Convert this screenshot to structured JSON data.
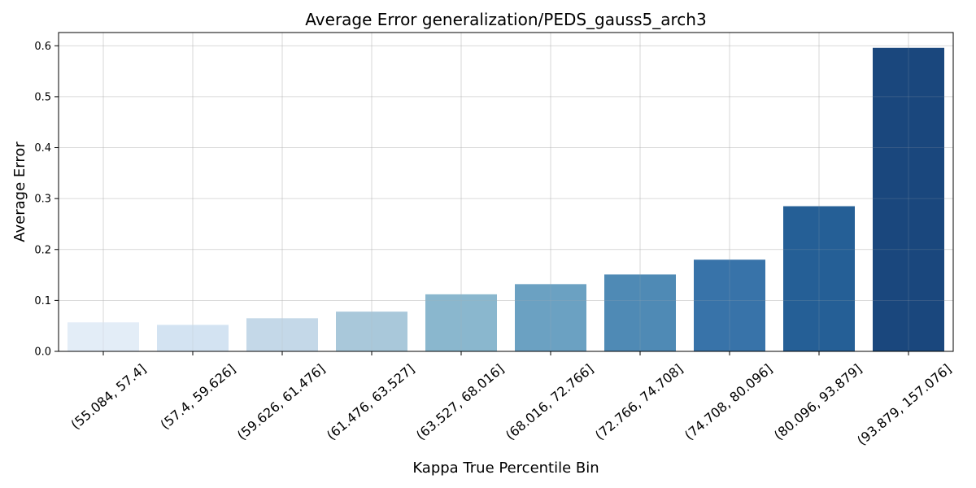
{
  "chart_data": {
    "type": "bar",
    "title": "Average Error generalization/PEDS_gauss5_arch3",
    "xlabel": "Kappa True Percentile Bin",
    "ylabel": "Average Error",
    "categories": [
      "(55.084, 57.4]",
      "(57.4, 59.626]",
      "(59.626, 61.476]",
      "(61.476, 63.527]",
      "(63.527, 68.016]",
      "(68.016, 72.766]",
      "(72.766, 74.708]",
      "(74.708, 80.096]",
      "(80.096, 93.879]",
      "(93.879, 157.076]"
    ],
    "values": [
      0.057,
      0.052,
      0.065,
      0.078,
      0.112,
      0.132,
      0.151,
      0.18,
      0.285,
      0.596
    ],
    "colors": [
      "#e3edf7",
      "#d3e3f2",
      "#c4d8e8",
      "#a9c8da",
      "#8ab7ce",
      "#6ba1c2",
      "#4f8ab5",
      "#3873a9",
      "#255f96",
      "#1a477d"
    ],
    "ylim": [
      0,
      0.626
    ],
    "yticks": [
      0.0,
      0.1,
      0.2,
      0.3,
      0.4,
      0.5,
      0.6
    ],
    "grid": true,
    "legend": "none"
  }
}
